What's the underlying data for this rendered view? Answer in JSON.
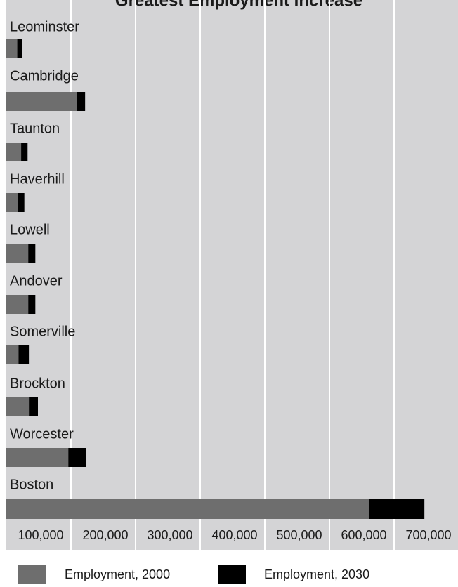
{
  "colors": {
    "plot_background": "#d4d4d6",
    "gridline": "#ffffff",
    "series_2000": "#6e6e6e",
    "series_2030": "#000000",
    "text": "#1a1a1a"
  },
  "chart_data": {
    "type": "bar",
    "orientation": "horizontal",
    "stacked": true,
    "title": "Greatest Employment Increase",
    "categories": [
      "Leominster",
      "Cambridge",
      "Taunton",
      "Haverhill",
      "Lowell",
      "Andover",
      "Somerville",
      "Brockton",
      "Worcester",
      "Boston"
    ],
    "series": [
      {
        "name": "Employment, 2000",
        "color": "#6e6e6e",
        "values": [
          18000,
          110000,
          24000,
          19000,
          35000,
          35000,
          20000,
          36000,
          97000,
          563000
        ]
      },
      {
        "name": "Employment, 2030",
        "color": "#000000",
        "values": [
          8000,
          13000,
          10000,
          10000,
          11000,
          11000,
          16000,
          14000,
          28000,
          85000
        ]
      }
    ],
    "x_tick_values": [
      100000,
      200000,
      300000,
      400000,
      500000,
      600000,
      700000
    ],
    "x_tick_labels": [
      "100,000",
      "200,000",
      "300,000",
      "400,000",
      "500,000",
      "600,000",
      "700,000"
    ],
    "xlim": [
      0,
      700000
    ],
    "grid": true,
    "legend_position": "bottom"
  }
}
